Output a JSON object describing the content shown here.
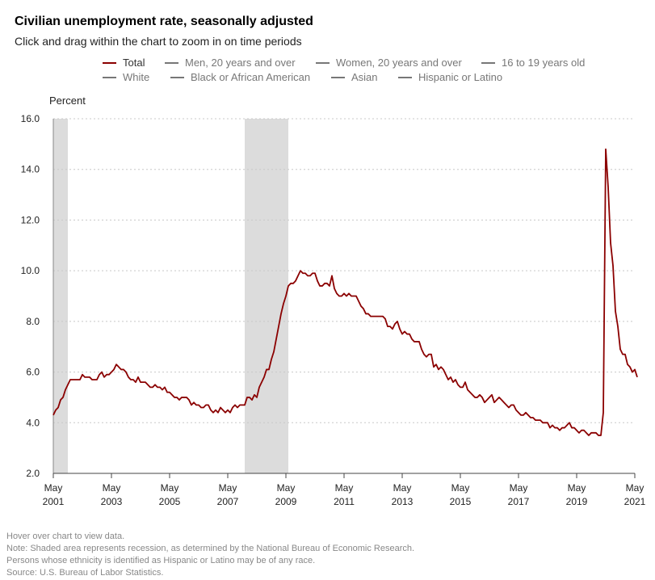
{
  "header": {
    "title": "Civilian unemployment rate, seasonally adjusted",
    "subtitle": "Click and drag within the chart to zoom in on time periods"
  },
  "legend": {
    "items": [
      {
        "label": "Total",
        "color": "#8b0000",
        "active": true
      },
      {
        "label": "Men, 20 years and over",
        "color": "#777777",
        "active": false
      },
      {
        "label": "Women, 20 years and over",
        "color": "#777777",
        "active": false
      },
      {
        "label": "16 to 19 years old",
        "color": "#777777",
        "active": false
      },
      {
        "label": "White",
        "color": "#777777",
        "active": false
      },
      {
        "label": "Black or African American",
        "color": "#777777",
        "active": false
      },
      {
        "label": "Asian",
        "color": "#777777",
        "active": false
      },
      {
        "label": "Hispanic or Latino",
        "color": "#777777",
        "active": false
      }
    ]
  },
  "footer": {
    "hover_note": "Hover over chart to view data.",
    "recession_note": "Note: Shaded area represents recession, as determined by the National Bureau of Economic Research.",
    "ethnicity_note": "Persons whose ethnicity is identified as Hispanic or Latino may be of any race.",
    "source": "Source: U.S. Bureau of Labor Statistics."
  },
  "chart_data": {
    "type": "line",
    "title": "Civilian unemployment rate, seasonally adjusted",
    "ylabel": "Percent",
    "ylim": [
      2.0,
      16.0
    ],
    "yticks": [
      "2.0",
      "4.0",
      "6.0",
      "8.0",
      "10.0",
      "12.0",
      "14.0",
      "16.0"
    ],
    "xlim": [
      "2001-05",
      "2021-05"
    ],
    "xticks": [
      {
        "month": "May",
        "year": "2001"
      },
      {
        "month": "May",
        "year": "2003"
      },
      {
        "month": "May",
        "year": "2005"
      },
      {
        "month": "May",
        "year": "2007"
      },
      {
        "month": "May",
        "year": "2009"
      },
      {
        "month": "May",
        "year": "2011"
      },
      {
        "month": "May",
        "year": "2013"
      },
      {
        "month": "May",
        "year": "2015"
      },
      {
        "month": "May",
        "year": "2017"
      },
      {
        "month": "May",
        "year": "2019"
      },
      {
        "month": "May",
        "year": "2021"
      }
    ],
    "grid": "horizontal dotted",
    "recessions": [
      {
        "start": "2001-05",
        "end": "2001-11"
      },
      {
        "start": "2007-12",
        "end": "2009-06"
      }
    ],
    "series": [
      {
        "name": "Total",
        "color": "#8b0000",
        "start": "2001-05",
        "frequency": "monthly",
        "values": [
          4.3,
          4.5,
          4.6,
          4.9,
          5.0,
          5.3,
          5.5,
          5.7,
          5.7,
          5.7,
          5.7,
          5.7,
          5.9,
          5.8,
          5.8,
          5.8,
          5.7,
          5.7,
          5.7,
          5.9,
          6.0,
          5.8,
          5.9,
          5.9,
          6.0,
          6.1,
          6.3,
          6.2,
          6.1,
          6.1,
          6.0,
          5.8,
          5.7,
          5.7,
          5.6,
          5.8,
          5.6,
          5.6,
          5.6,
          5.5,
          5.4,
          5.4,
          5.5,
          5.4,
          5.4,
          5.3,
          5.4,
          5.2,
          5.2,
          5.1,
          5.0,
          5.0,
          4.9,
          5.0,
          5.0,
          5.0,
          4.9,
          4.7,
          4.8,
          4.7,
          4.7,
          4.6,
          4.6,
          4.7,
          4.7,
          4.5,
          4.4,
          4.5,
          4.4,
          4.6,
          4.5,
          4.4,
          4.5,
          4.4,
          4.6,
          4.7,
          4.6,
          4.7,
          4.7,
          4.7,
          5.0,
          5.0,
          4.9,
          5.1,
          5.0,
          5.4,
          5.6,
          5.8,
          6.1,
          6.1,
          6.5,
          6.8,
          7.3,
          7.8,
          8.3,
          8.7,
          9.0,
          9.4,
          9.5,
          9.5,
          9.6,
          9.8,
          10.0,
          9.9,
          9.9,
          9.8,
          9.8,
          9.9,
          9.9,
          9.6,
          9.4,
          9.4,
          9.5,
          9.5,
          9.4,
          9.8,
          9.3,
          9.1,
          9.0,
          9.0,
          9.1,
          9.0,
          9.1,
          9.0,
          9.0,
          9.0,
          8.8,
          8.6,
          8.5,
          8.3,
          8.3,
          8.2,
          8.2,
          8.2,
          8.2,
          8.2,
          8.2,
          8.1,
          7.8,
          7.8,
          7.7,
          7.9,
          8.0,
          7.7,
          7.5,
          7.6,
          7.5,
          7.5,
          7.3,
          7.2,
          7.2,
          7.2,
          6.9,
          6.7,
          6.6,
          6.7,
          6.7,
          6.2,
          6.3,
          6.1,
          6.2,
          6.1,
          5.9,
          5.7,
          5.8,
          5.6,
          5.7,
          5.5,
          5.4,
          5.4,
          5.6,
          5.3,
          5.2,
          5.1,
          5.0,
          5.0,
          5.1,
          5.0,
          4.8,
          4.9,
          5.0,
          5.1,
          4.8,
          4.9,
          5.0,
          4.9,
          4.8,
          4.7,
          4.6,
          4.7,
          4.7,
          4.5,
          4.4,
          4.3,
          4.3,
          4.4,
          4.3,
          4.2,
          4.2,
          4.1,
          4.1,
          4.1,
          4.0,
          4.0,
          4.0,
          3.8,
          3.9,
          3.8,
          3.8,
          3.7,
          3.8,
          3.8,
          3.9,
          4.0,
          3.8,
          3.8,
          3.7,
          3.6,
          3.7,
          3.7,
          3.6,
          3.5,
          3.6,
          3.6,
          3.6,
          3.5,
          3.5,
          4.4,
          14.8,
          13.3,
          11.1,
          10.2,
          8.4,
          7.8,
          6.9,
          6.7,
          6.7,
          6.3,
          6.2,
          6.0,
          6.1,
          5.8
        ]
      }
    ]
  }
}
